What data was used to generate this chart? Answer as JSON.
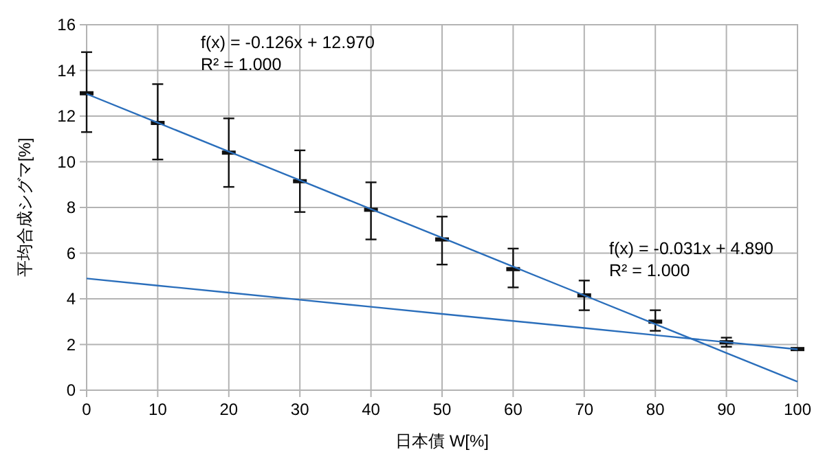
{
  "chart_data": {
    "type": "scatter",
    "xlabel": "日本債 W[%]",
    "ylabel": "平均合成シグマ[%]",
    "x": [
      0,
      10,
      20,
      30,
      40,
      50,
      60,
      70,
      80,
      90,
      100
    ],
    "series": [
      {
        "color": "#111111",
        "marker": "square",
        "values": [
          13.0,
          11.7,
          10.4,
          9.15,
          7.9,
          6.6,
          5.3,
          4.15,
          3.0,
          2.1,
          1.8
        ],
        "errors": [
          [
            11.3,
            14.8
          ],
          [
            10.1,
            13.4
          ],
          [
            8.9,
            11.9
          ],
          [
            7.8,
            10.5
          ],
          [
            6.6,
            9.1
          ],
          [
            5.5,
            7.6
          ],
          [
            4.5,
            6.2
          ],
          [
            3.5,
            4.8
          ],
          [
            2.6,
            3.5
          ],
          [
            1.9,
            2.3
          ],
          null
        ]
      },
      {
        "type": "line",
        "color": "#2a6ebb",
        "values": [
          12.97,
          11.71,
          10.45,
          9.19,
          7.93,
          6.67,
          5.41,
          4.15,
          2.89,
          1.63,
          0.37
        ]
      },
      {
        "type": "line",
        "color": "#2a6ebb",
        "values": [
          4.89,
          4.58,
          4.27,
          3.96,
          3.65,
          3.34,
          3.03,
          2.72,
          2.41,
          2.1,
          1.79
        ]
      }
    ],
    "annotations": [
      "f(x) = -0.126x + 12.970\nR² = 1.000",
      "f(x) = -0.031x + 4.890\nR² = 1.000"
    ],
    "xlim": [
      0,
      100
    ],
    "xticks": [
      0,
      10,
      20,
      30,
      40,
      50,
      60,
      70,
      80,
      90,
      100
    ],
    "ylim": [
      0,
      16
    ],
    "yticks": [
      0,
      2,
      4,
      6,
      8,
      10,
      12,
      14,
      16
    ],
    "grid": true
  }
}
